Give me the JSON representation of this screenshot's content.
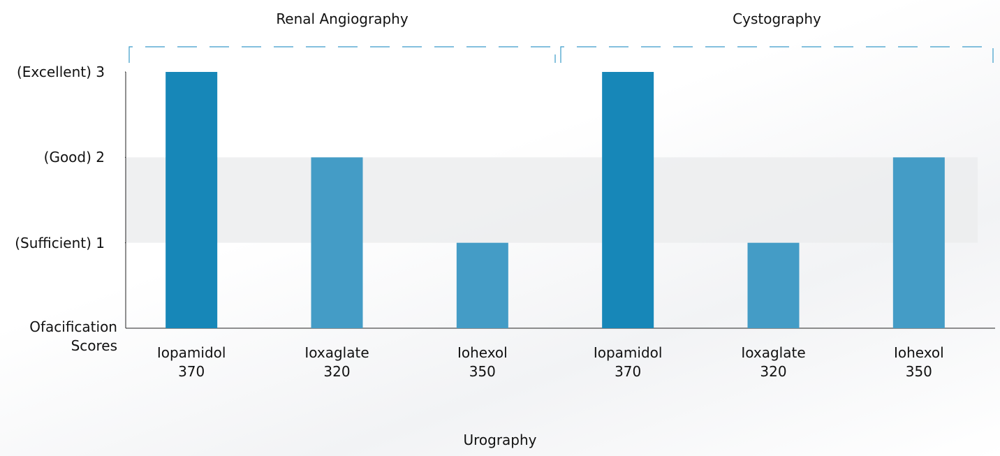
{
  "chart_data": {
    "type": "bar",
    "groups": [
      "Renal Angiography",
      "Cystography"
    ],
    "categories": [
      "Iopamidol\n370",
      "Ioxaglate\n320",
      "Iohexol\n350",
      "Iopamidol\n370",
      "Ioxaglate\n320",
      "Iohexol\n350"
    ],
    "values": [
      3,
      2,
      1,
      3,
      1,
      2
    ],
    "colors": [
      "#1787b8",
      "#449cc6",
      "#449cc6",
      "#1787b8",
      "#449cc6",
      "#449cc6"
    ],
    "ylim": [
      0,
      3
    ],
    "yticks": [
      {
        "value": 1,
        "label": "(Sufficient) 1"
      },
      {
        "value": 2,
        "label": "(Good) 2"
      },
      {
        "value": 3,
        "label": "(Excellent) 3"
      }
    ],
    "highlight_band": [
      1,
      2
    ],
    "y_label": "Ofacification\nScores",
    "x_label": "Urography"
  }
}
